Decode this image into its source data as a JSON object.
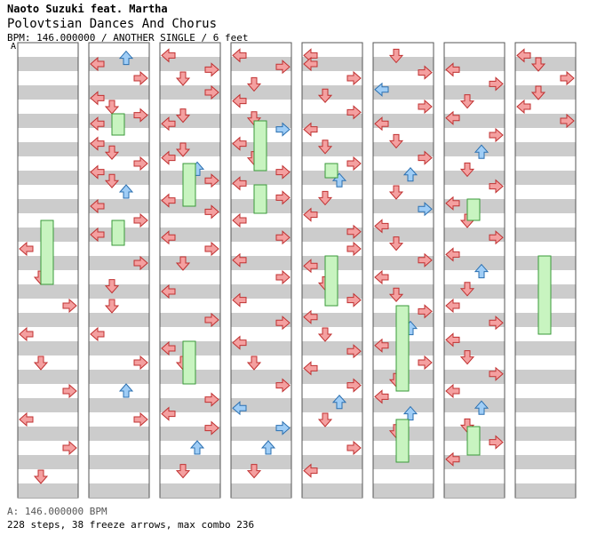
{
  "header": {
    "artist": "Naoto Suzuki feat. Martha",
    "title": "Polovtsian Dances And Chorus",
    "meta": "BPM: 146.000000 / ANOTHER SINGLE / 6 feet",
    "bpm_marker": "A"
  },
  "footer": {
    "bpm_line": "A: 146.000000 BPM",
    "stats_line": "228 steps, 38 freeze arrows, max combo 236"
  },
  "colors": {
    "stripe": "#cccccc",
    "red_arrow": "#f4a0a0",
    "blue_arrow": "#9fcdf6",
    "freeze": "#c8f4c0"
  },
  "columns_count": 8,
  "notes": [
    [
      [
        0,
        7,
        "L"
      ],
      [
        0,
        8,
        "D"
      ],
      [
        0,
        9,
        "R"
      ],
      [
        0,
        10,
        "L"
      ],
      [
        0,
        11,
        "D"
      ],
      [
        0,
        12,
        "R"
      ],
      [
        0,
        13,
        "L"
      ],
      [
        0,
        14,
        "R"
      ],
      [
        0,
        15,
        "D"
      ]
    ],
    [
      [
        0,
        0.5,
        "L"
      ],
      [
        0,
        0.3,
        "U"
      ],
      [
        0,
        1,
        "R"
      ],
      [
        0,
        1.7,
        "L"
      ],
      [
        0,
        2,
        "D"
      ],
      [
        0,
        2.3,
        "R"
      ],
      [
        0,
        2.6,
        "L"
      ],
      [
        0,
        3.3,
        "L"
      ],
      [
        0,
        3.6,
        "D"
      ],
      [
        0,
        4,
        "R"
      ],
      [
        0,
        4.3,
        "L"
      ],
      [
        0,
        4.6,
        "D"
      ],
      [
        0,
        5,
        "U"
      ],
      [
        0,
        5.5,
        "L"
      ],
      [
        0,
        6,
        "R"
      ],
      [
        0,
        6.5,
        "L"
      ],
      [
        0,
        7.5,
        "R"
      ],
      [
        0,
        8.3,
        "D"
      ],
      [
        0,
        9,
        "D"
      ],
      [
        0,
        10,
        "L"
      ],
      [
        0,
        11,
        "R"
      ],
      [
        0,
        12,
        "U"
      ],
      [
        0,
        13,
        "R"
      ]
    ],
    [
      [
        0,
        0.2,
        "L"
      ],
      [
        0,
        0.7,
        "R"
      ],
      [
        0,
        1,
        "D"
      ],
      [
        0,
        1.5,
        "R"
      ],
      [
        0,
        2.3,
        "D"
      ],
      [
        0,
        2.6,
        "L"
      ],
      [
        0,
        3.5,
        "D"
      ],
      [
        0,
        3.8,
        "L"
      ],
      [
        0,
        4.2,
        "U"
      ],
      [
        0,
        4.6,
        "R"
      ],
      [
        0,
        5.3,
        "L"
      ],
      [
        0,
        5.7,
        "R"
      ],
      [
        0,
        6.6,
        "L"
      ],
      [
        0,
        7,
        "R"
      ],
      [
        0,
        7.5,
        "D"
      ],
      [
        0,
        8.5,
        "L"
      ],
      [
        0,
        9.5,
        "R"
      ],
      [
        0,
        10.5,
        "L"
      ],
      [
        0,
        11,
        "D"
      ],
      [
        0,
        12.3,
        "R"
      ],
      [
        0,
        12.8,
        "L"
      ],
      [
        0,
        13.3,
        "R"
      ],
      [
        0,
        14,
        "U"
      ],
      [
        0,
        14.8,
        "D"
      ]
    ],
    [
      [
        0,
        0.2,
        "L"
      ],
      [
        0,
        0.6,
        "R"
      ],
      [
        0,
        1.2,
        "D"
      ],
      [
        0,
        1.8,
        "L"
      ],
      [
        0,
        2.4,
        "D"
      ],
      [
        0,
        2.8,
        "R"
      ],
      [
        0,
        3.3,
        "L"
      ],
      [
        0,
        3.8,
        "D"
      ],
      [
        0,
        4.3,
        "R"
      ],
      [
        0,
        4.7,
        "L"
      ],
      [
        0,
        5.2,
        "R"
      ],
      [
        0,
        6,
        "L"
      ],
      [
        0,
        6.6,
        "R"
      ],
      [
        0,
        7.4,
        "L"
      ],
      [
        0,
        8,
        "R"
      ],
      [
        0,
        8.8,
        "L"
      ],
      [
        0,
        9.6,
        "R"
      ],
      [
        0,
        10.3,
        "L"
      ],
      [
        0,
        11,
        "D"
      ],
      [
        0,
        11.8,
        "R"
      ],
      [
        0,
        12.6,
        "L"
      ],
      [
        0,
        13.3,
        "R"
      ],
      [
        0,
        14,
        "U"
      ],
      [
        0,
        14.8,
        "D"
      ]
    ],
    [
      [
        0,
        0.2,
        "L"
      ],
      [
        0,
        0.5,
        "L"
      ],
      [
        0,
        1,
        "R"
      ],
      [
        0,
        1.6,
        "D"
      ],
      [
        0,
        2.2,
        "R"
      ],
      [
        0,
        2.8,
        "L"
      ],
      [
        0,
        3.4,
        "D"
      ],
      [
        0,
        4,
        "R"
      ],
      [
        0,
        4.6,
        "U"
      ],
      [
        0,
        5.2,
        "D"
      ],
      [
        0,
        5.8,
        "L"
      ],
      [
        0,
        6.4,
        "R"
      ],
      [
        0,
        7,
        "R"
      ],
      [
        0,
        7.6,
        "L"
      ],
      [
        0,
        8.2,
        "D"
      ],
      [
        0,
        8.8,
        "R"
      ],
      [
        0,
        9.4,
        "L"
      ],
      [
        0,
        10,
        "D"
      ],
      [
        0,
        10.6,
        "R"
      ],
      [
        0,
        11.2,
        "L"
      ],
      [
        0,
        11.8,
        "R"
      ],
      [
        0,
        12.4,
        "U"
      ],
      [
        0,
        13,
        "D"
      ],
      [
        0,
        14,
        "R"
      ],
      [
        0,
        14.8,
        "L"
      ]
    ],
    [
      [
        0,
        0.2,
        "D"
      ],
      [
        0,
        0.8,
        "R"
      ],
      [
        0,
        1.4,
        "L"
      ],
      [
        0,
        2,
        "R"
      ],
      [
        0,
        2.6,
        "L"
      ],
      [
        0,
        3.2,
        "D"
      ],
      [
        0,
        3.8,
        "R"
      ],
      [
        0,
        4.4,
        "U"
      ],
      [
        0,
        5,
        "D"
      ],
      [
        0,
        5.6,
        "R"
      ],
      [
        0,
        6.2,
        "L"
      ],
      [
        0,
        6.8,
        "D"
      ],
      [
        0,
        7.4,
        "R"
      ],
      [
        0,
        8,
        "L"
      ],
      [
        0,
        8.6,
        "D"
      ],
      [
        0,
        9.2,
        "R"
      ],
      [
        0,
        9.8,
        "U"
      ],
      [
        0,
        10.4,
        "L"
      ],
      [
        0,
        11,
        "R"
      ],
      [
        0,
        11.6,
        "D"
      ],
      [
        0,
        12.2,
        "L"
      ],
      [
        0,
        12.8,
        "U"
      ],
      [
        0,
        13.4,
        "D"
      ]
    ],
    [
      [
        0,
        0.7,
        "L"
      ],
      [
        0,
        1.2,
        "R"
      ],
      [
        0,
        1.8,
        "D"
      ],
      [
        0,
        2.4,
        "L"
      ],
      [
        0,
        3,
        "R"
      ],
      [
        0,
        3.6,
        "U"
      ],
      [
        0,
        4.2,
        "D"
      ],
      [
        0,
        4.8,
        "R"
      ],
      [
        0,
        5.4,
        "L"
      ],
      [
        0,
        6,
        "D"
      ],
      [
        0,
        6.6,
        "R"
      ],
      [
        0,
        7.2,
        "L"
      ],
      [
        0,
        7.8,
        "U"
      ],
      [
        0,
        8.4,
        "D"
      ],
      [
        0,
        9,
        "L"
      ],
      [
        0,
        9.6,
        "R"
      ],
      [
        0,
        10.2,
        "L"
      ],
      [
        0,
        10.8,
        "D"
      ],
      [
        0,
        11.4,
        "R"
      ],
      [
        0,
        12,
        "L"
      ],
      [
        0,
        12.6,
        "U"
      ],
      [
        0,
        13.2,
        "D"
      ],
      [
        0,
        13.8,
        "R"
      ],
      [
        0,
        14.4,
        "L"
      ]
    ],
    [
      [
        0,
        0.2,
        "L"
      ],
      [
        0,
        0.5,
        "D"
      ],
      [
        0,
        1,
        "R"
      ],
      [
        0,
        1.5,
        "D"
      ],
      [
        0,
        2,
        "L"
      ],
      [
        0,
        2.5,
        "R"
      ]
    ]
  ]
}
